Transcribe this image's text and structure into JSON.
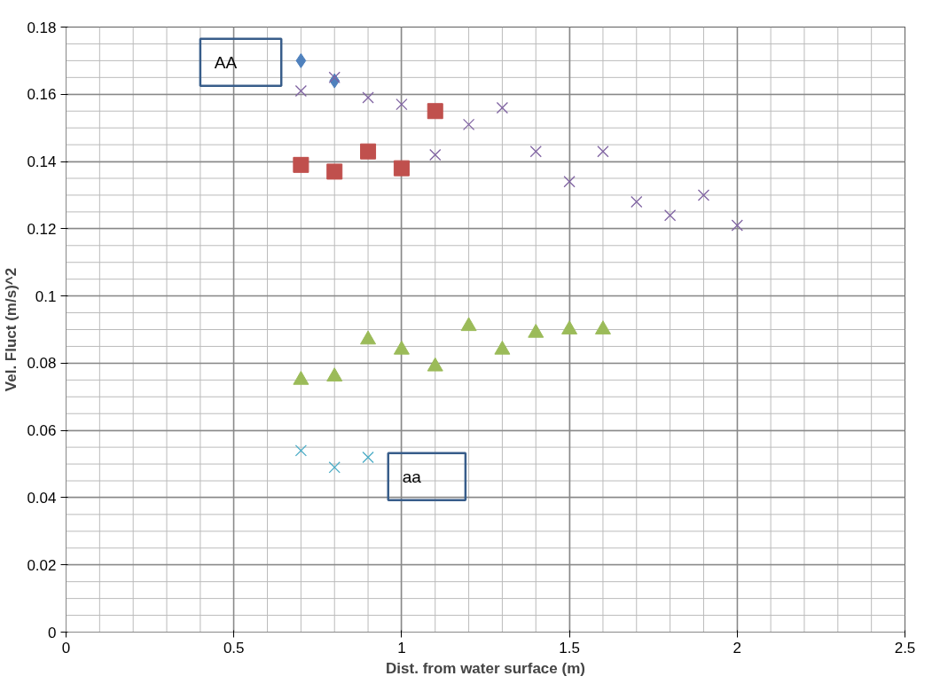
{
  "chart_data": {
    "type": "scatter",
    "xlabel": "Dist. from water surface (m)",
    "ylabel": "Vel. Fluct (m/s)^2",
    "xlim": [
      0,
      2.5
    ],
    "xticks": [
      0,
      0.5,
      1,
      1.5,
      2,
      2.5
    ],
    "ylim": [
      0,
      0.18
    ],
    "yticks": [
      0,
      0.02,
      0.04,
      0.06,
      0.08,
      0.1,
      0.12,
      0.14,
      0.16,
      0.18
    ],
    "grid": true,
    "series": [
      {
        "color": "#4f81bd",
        "marker": "diamond",
        "x": [
          0.7,
          0.8
        ],
        "values": [
          0.17,
          0.164
        ]
      },
      {
        "color": "#c0504d",
        "marker": "square",
        "x": [
          0.7,
          0.8,
          0.9,
          1.0,
          1.1
        ],
        "values": [
          0.139,
          0.137,
          0.143,
          0.138,
          0.155
        ]
      },
      {
        "color": "#8064a2",
        "marker": "cross",
        "x": [
          0.7,
          0.8,
          0.9,
          1.0,
          1.1,
          1.2,
          1.3,
          1.4,
          1.5,
          1.6,
          1.7,
          1.8,
          1.9,
          2.0
        ],
        "values": [
          0.161,
          0.165,
          0.159,
          0.157,
          0.142,
          0.151,
          0.156,
          0.143,
          0.134,
          0.143,
          0.128,
          0.124,
          0.13,
          0.121
        ]
      },
      {
        "color": "#9bbb59",
        "marker": "triangle",
        "x": [
          0.7,
          0.8,
          0.9,
          1.0,
          1.1,
          1.2,
          1.3,
          1.4,
          1.5,
          1.6
        ],
        "values": [
          0.075,
          0.076,
          0.087,
          0.084,
          0.079,
          0.091,
          0.084,
          0.089,
          0.09,
          0.09
        ]
      },
      {
        "color": "#4bacc6",
        "marker": "cross",
        "x": [
          0.7,
          0.8,
          0.9
        ],
        "values": [
          0.054,
          0.049,
          0.052
        ]
      }
    ],
    "annotations": [
      "AA",
      "aa"
    ]
  }
}
